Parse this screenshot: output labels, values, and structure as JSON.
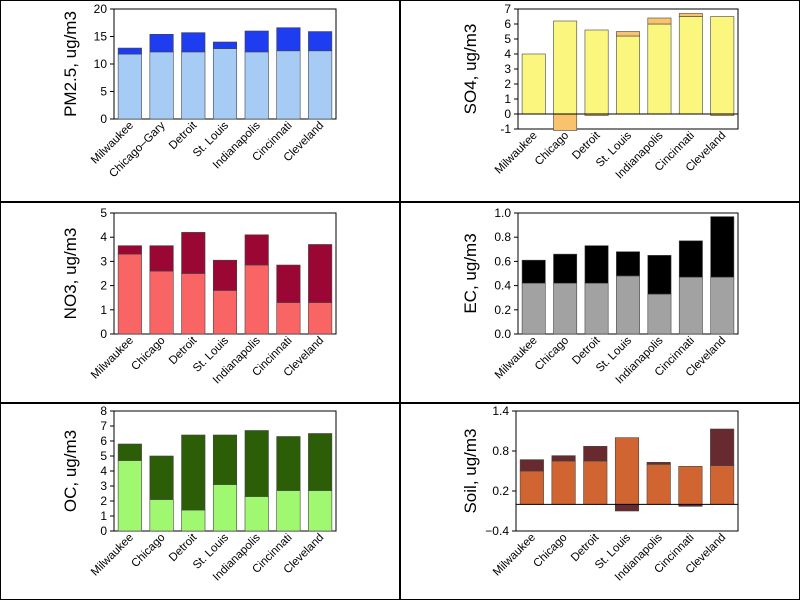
{
  "chart_data": [
    {
      "type": "bar",
      "stacked": true,
      "ylabel": "PM2.5, ug/m3",
      "ylim": [
        0,
        20
      ],
      "yticks": [
        0,
        5,
        10,
        15,
        20
      ],
      "categories": [
        "Milwaukee",
        "Chicago–Gary",
        "Detroit",
        "St. Louis",
        "Indianapolis",
        "Cincinnati",
        "Cleveland"
      ],
      "series": [
        {
          "color": "#a6ccf5",
          "values": [
            11.8,
            12.2,
            12.2,
            12.8,
            12.2,
            12.4,
            12.4
          ]
        },
        {
          "color": "#1e3cf0",
          "values": [
            1.1,
            3.2,
            3.5,
            1.2,
            3.8,
            4.2,
            3.5
          ]
        }
      ]
    },
    {
      "type": "bar",
      "stacked": true,
      "ylabel": "SO4, ug/m3",
      "ylim": [
        -1,
        7
      ],
      "yticks": [
        -1,
        0,
        1,
        2,
        3,
        4,
        5,
        6,
        7
      ],
      "categories": [
        "Milwaukee",
        "Chicago",
        "Detroit",
        "St. Louis",
        "Indianapolis",
        "Cincinnati",
        "Cleveland"
      ],
      "series": [
        {
          "color": "#fbf77e",
          "values": [
            4.0,
            6.2,
            5.6,
            5.2,
            6.0,
            6.5,
            6.5
          ]
        },
        {
          "color": "#f9c26c",
          "values": [
            0.0,
            -1.1,
            -0.1,
            0.3,
            0.4,
            0.2,
            -0.1
          ]
        }
      ]
    },
    {
      "type": "bar",
      "stacked": true,
      "ylabel": "NO3, ug/m3",
      "ylim": [
        0,
        5
      ],
      "yticks": [
        0,
        1,
        2,
        3,
        4,
        5
      ],
      "categories": [
        "Milwaukee",
        "Chicago",
        "Detroit",
        "St. Louis",
        "Indianapolis",
        "Cincinnati",
        "Cleveland"
      ],
      "series": [
        {
          "color": "#f96565",
          "values": [
            3.3,
            2.6,
            2.5,
            1.8,
            2.85,
            1.3,
            1.3
          ]
        },
        {
          "color": "#9b0734",
          "values": [
            0.35,
            1.05,
            1.7,
            1.25,
            1.25,
            1.55,
            2.4
          ]
        }
      ]
    },
    {
      "type": "bar",
      "stacked": true,
      "ylabel": "EC, ug/m3",
      "ylim": [
        0,
        1
      ],
      "yticks": [
        "0.0",
        "0.2",
        "0.4",
        "0.6",
        "0.8",
        "1.0"
      ],
      "categories": [
        "Milwaukee",
        "Chicago",
        "Detroit",
        "St. Louis",
        "Indianapolis",
        "Cincinnati",
        "Cleveland"
      ],
      "series": [
        {
          "color": "#a2a2a2",
          "values": [
            0.42,
            0.42,
            0.42,
            0.48,
            0.33,
            0.47,
            0.47
          ]
        },
        {
          "color": "#000000",
          "values": [
            0.19,
            0.24,
            0.31,
            0.2,
            0.32,
            0.3,
            0.5
          ]
        }
      ]
    },
    {
      "type": "bar",
      "stacked": true,
      "ylabel": "OC, ug/m3",
      "ylim": [
        0,
        8
      ],
      "yticks": [
        0,
        1,
        2,
        3,
        4,
        5,
        6,
        7,
        8
      ],
      "categories": [
        "Milwaukee",
        "Chicago",
        "Detroit",
        "St. Louis",
        "Indianapolis",
        "Cincinnati",
        "Cleveland"
      ],
      "series": [
        {
          "color": "#a0f770",
          "values": [
            4.7,
            2.1,
            1.4,
            3.1,
            2.3,
            2.7,
            2.7
          ]
        },
        {
          "color": "#2b5e07",
          "values": [
            1.1,
            2.9,
            5.0,
            3.3,
            4.4,
            3.6,
            3.8
          ]
        }
      ]
    },
    {
      "type": "bar",
      "stacked": true,
      "ylabel": "Soil, ug/m3",
      "ylim": [
        -0.4,
        1.4
      ],
      "yticks": [
        "−0.4",
        "0.2",
        "0.8",
        "1.4"
      ],
      "ytick_values": [
        -0.4,
        0.2,
        0.8,
        1.4
      ],
      "categories": [
        "Milwaukee",
        "Chicago",
        "Detroit",
        "St. Louis",
        "Indianapolis",
        "Cincinnati",
        "Cleveland"
      ],
      "series": [
        {
          "color": "#d16532",
          "values": [
            0.5,
            0.65,
            0.65,
            1.0,
            0.6,
            0.57,
            0.58
          ]
        },
        {
          "color": "#672a2f",
          "values": [
            0.17,
            0.08,
            0.22,
            -0.1,
            0.03,
            -0.03,
            0.55
          ]
        }
      ]
    }
  ]
}
